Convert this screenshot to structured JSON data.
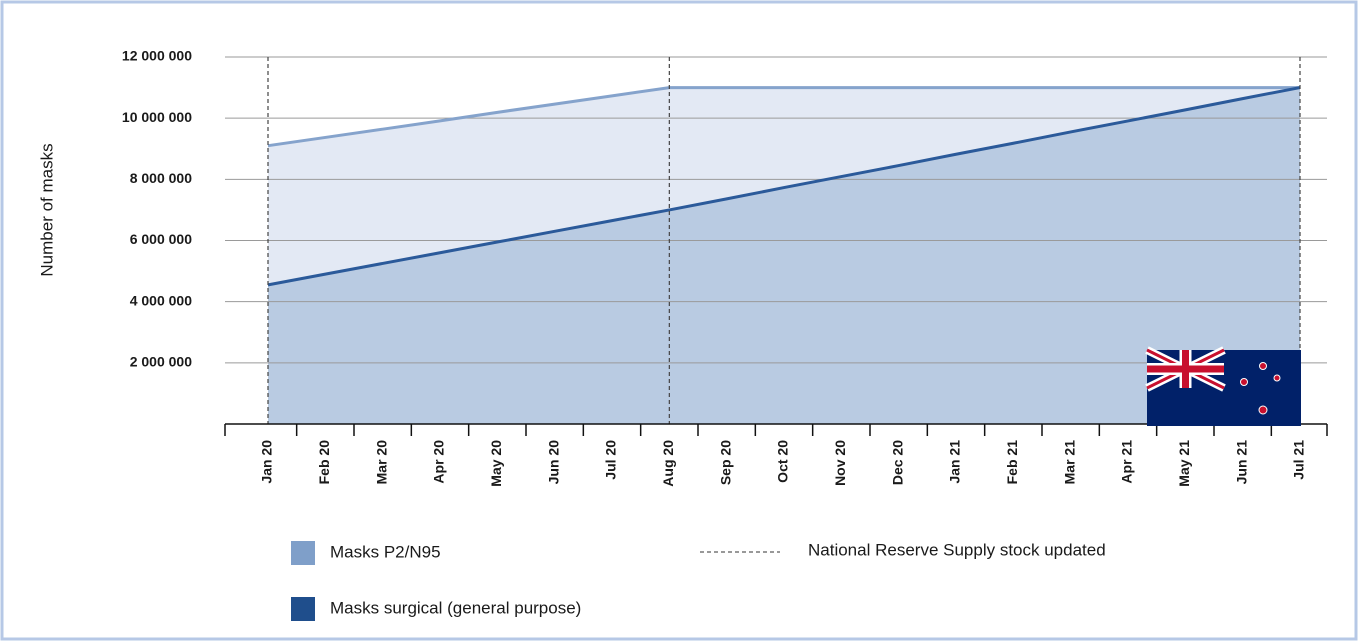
{
  "chart_data": {
    "type": "area",
    "y_label": "Number of masks",
    "categories": [
      "Jan 20",
      "Feb 20",
      "Mar 20",
      "Apr 20",
      "May 20",
      "Jun 20",
      "Jul 20",
      "Aug 20",
      "Sep 20",
      "Oct 20",
      "Nov 20",
      "Dec 20",
      "Jan 21",
      "Feb 21",
      "Mar 21",
      "Apr 21",
      "May 21",
      "Jun 21",
      "Jul 21"
    ],
    "series": [
      {
        "name": "Masks P2/N95",
        "color": "#7f9fc9",
        "line_color": "#85a3cc",
        "fill": "#e3e9f4",
        "values": [
          9100000,
          9370000,
          9640000,
          9910000,
          10190000,
          10460000,
          10730000,
          11000000,
          11000000,
          11000000,
          11000000,
          11000000,
          11000000,
          11000000,
          11000000,
          11000000,
          11000000,
          11000000,
          11000000
        ]
      },
      {
        "name": "Masks surgical (general purpose)",
        "color": "#1f4e8c",
        "line_color": "#2b5a9a",
        "fill": "#b9cbe2",
        "values": [
          4550000,
          4900000,
          5250000,
          5600000,
          5950000,
          6300000,
          6650000,
          7000000,
          7360000,
          7730000,
          8090000,
          8450000,
          8820000,
          9180000,
          9550000,
          9910000,
          10270000,
          10640000,
          11000000
        ]
      }
    ],
    "reference_lines": [
      "Jan 20",
      "Aug 20",
      "Jul 21"
    ],
    "reference_line_label": "National Reserve Supply stock updated",
    "ylim": [
      0,
      12000000
    ],
    "yticks": [
      {
        "value": 2000000,
        "label": "2 000 000"
      },
      {
        "value": 4000000,
        "label": "4 000 000"
      },
      {
        "value": 6000000,
        "label": "6 000 000"
      },
      {
        "value": 8000000,
        "label": "8 000 000"
      },
      {
        "value": 10000000,
        "label": "10 000 000"
      },
      {
        "value": 12000000,
        "label": "12 000 000"
      }
    ],
    "grid": true
  }
}
